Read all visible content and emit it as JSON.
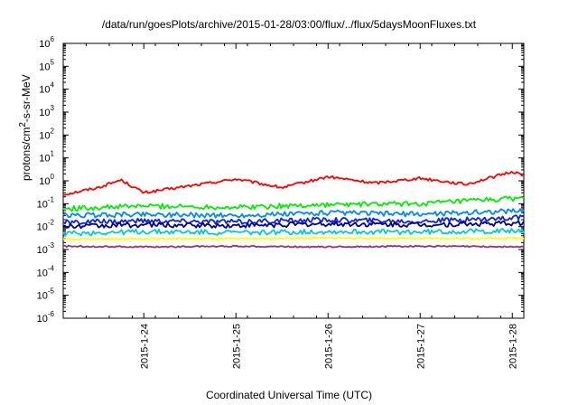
{
  "chart_data": {
    "type": "line",
    "title": "/data/run/goesPlots/archive/2015-01-28/03:00/flux/../flux/5daysMoonFluxes.txt",
    "xlabel": "Coordinated Universal Time (UTC)",
    "ylabel": "protons/cm2-s-sr-MeV",
    "y_scale": "log",
    "ylim": [
      "1e-6",
      "1e6"
    ],
    "xlim": [
      "2015-01-23T03:00",
      "2015-01-28T03:00"
    ],
    "y_ticks": [
      {
        "base": "10",
        "exp": "-6"
      },
      {
        "base": "10",
        "exp": "-5"
      },
      {
        "base": "10",
        "exp": "-4"
      },
      {
        "base": "10",
        "exp": "-3"
      },
      {
        "base": "10",
        "exp": "-2"
      },
      {
        "base": "10",
        "exp": "-1"
      },
      {
        "base": "10",
        "exp": "0"
      },
      {
        "base": "10",
        "exp": "1"
      },
      {
        "base": "10",
        "exp": "2"
      },
      {
        "base": "10",
        "exp": "3"
      },
      {
        "base": "10",
        "exp": "4"
      },
      {
        "base": "10",
        "exp": "5"
      },
      {
        "base": "10",
        "exp": "6"
      }
    ],
    "x_ticks": [
      "2015-1-24",
      "2015-1-25",
      "2015-1-26",
      "2015-1-27",
      "2015-1-28"
    ],
    "grid": false,
    "legend": "none",
    "series": [
      {
        "color": "#ff0000",
        "x": [
          "01-23 03:00",
          "01-23 12:00",
          "01-23 18:00",
          "01-24 00:00",
          "01-24 12:00",
          "01-25 00:00",
          "01-25 12:00",
          "01-26 00:00",
          "01-26 12:00",
          "01-27 00:00",
          "01-27 12:00",
          "01-28 00:00",
          "01-28 03:00"
        ],
        "y": [
          0.25,
          0.5,
          1.1,
          0.3,
          0.6,
          1.2,
          0.5,
          1.5,
          0.8,
          1.3,
          0.7,
          2.5,
          1.8
        ]
      },
      {
        "color": "#00ee00",
        "x": [
          "01-23 03:00",
          "01-24 00:00",
          "01-25 00:00",
          "01-26 00:00",
          "01-27 00:00",
          "01-28 03:00"
        ],
        "y": [
          0.06,
          0.08,
          0.07,
          0.09,
          0.1,
          0.18
        ]
      },
      {
        "color": "#0088ff",
        "x": [
          "01-23 03:00",
          "01-24 00:00",
          "01-25 00:00",
          "01-26 00:00",
          "01-27 00:00",
          "01-28 03:00"
        ],
        "y": [
          0.03,
          0.035,
          0.03,
          0.04,
          0.035,
          0.05
        ]
      },
      {
        "color": "#1122dd",
        "x": [
          "01-23 03:00",
          "01-24 00:00",
          "01-25 00:00",
          "01-26 00:00",
          "01-27 00:00",
          "01-28 03:00"
        ],
        "y": [
          0.015,
          0.018,
          0.016,
          0.02,
          0.017,
          0.025
        ]
      },
      {
        "color": "#000099",
        "x": [
          "01-23 03:00",
          "01-24 00:00",
          "01-25 00:00",
          "01-26 00:00",
          "01-27 00:00",
          "01-28 03:00"
        ],
        "y": [
          0.01,
          0.012,
          0.011,
          0.013,
          0.012,
          0.014
        ]
      },
      {
        "color": "#00cccc",
        "x": [
          "01-23 03:00",
          "01-24 00:00",
          "01-25 00:00",
          "01-26 00:00",
          "01-27 00:00",
          "01-28 03:00"
        ],
        "y": [
          0.005,
          0.006,
          0.0055,
          0.006,
          0.0058,
          0.0065
        ]
      },
      {
        "color": "#ffff00",
        "x": [
          "01-23 03:00",
          "01-24 00:00",
          "01-25 00:00",
          "01-26 00:00",
          "01-27 00:00",
          "01-28 03:00"
        ],
        "y": [
          0.0028,
          0.003,
          0.0029,
          0.0032,
          0.003,
          0.0031
        ]
      },
      {
        "color": "#993366",
        "x": [
          "01-23 03:00",
          "01-24 00:00",
          "01-25 00:00",
          "01-26 00:00",
          "01-27 00:00",
          "01-28 03:00"
        ],
        "y": [
          0.0014,
          0.0013,
          0.0014,
          0.0013,
          0.0014,
          0.0013
        ]
      }
    ]
  }
}
